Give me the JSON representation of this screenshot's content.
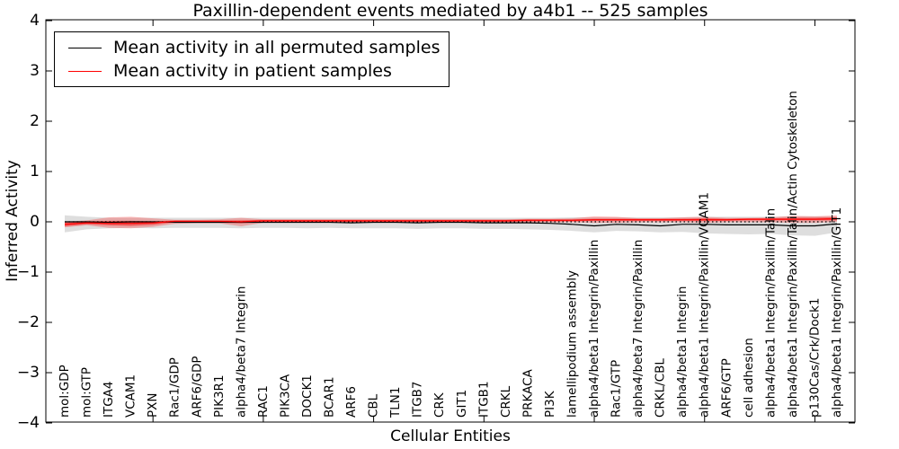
{
  "figure": {
    "title": "Paxillin-dependent events mediated by a4b1 -- 525 samples",
    "xlabel": "Cellular Entities",
    "ylabel": "Inferred Activity"
  },
  "legend": {
    "entries": [
      {
        "label": "Mean activity in all permuted samples",
        "color": "#000000"
      },
      {
        "label": "Mean activity in patient samples",
        "color": "#ff0000"
      }
    ]
  },
  "chart_data": {
    "type": "line",
    "title": "Paxillin-dependent events mediated by a4b1 -- 525 samples",
    "xlabel": "Cellular Entities",
    "ylabel": "Inferred Activity",
    "ylim": [
      -4,
      4
    ],
    "yticks": [
      4,
      3,
      2,
      1,
      0,
      -1,
      -2,
      -3,
      -4
    ],
    "ytick_labels": [
      "4",
      "3",
      "2",
      "1",
      "0",
      "−1",
      "−2",
      "−3",
      "−4"
    ],
    "grid": false,
    "legend_position": "upper left",
    "x_major_tick_indices": [
      4,
      9,
      14,
      19,
      24,
      29,
      34
    ],
    "categories": [
      "mol:GDP",
      "mol:GTP",
      "ITGA4",
      "VCAM1",
      "PXN",
      "Rac1/GDP",
      "ARF6/GDP",
      "PIK3R1",
      "alpha4/beta7 Integrin",
      "RAC1",
      "PIK3CA",
      "DOCK1",
      "BCAR1",
      "ARF6",
      "CBL",
      "TLN1",
      "ITGB7",
      "CRK",
      "GIT1",
      "ITGB1",
      "CRKL",
      "PRKACA",
      "PI3K",
      "lamellipodium assembly",
      "alpha4/beta1 Integrin/Paxillin",
      "Rac1/GTP",
      "alpha4/beta7 Integrin/Paxillin",
      "CRKL/CBL",
      "alpha4/beta1 Integrin",
      "alpha4/beta1 Integrin/Paxillin/VCAM1",
      "ARF6/GTP",
      "cell adhesion",
      "alpha4/beta1 Integrin/Paxillin/Talin",
      "alpha4/beta1 Integrin/Paxillin/Talin/Actin Cytoskeleton",
      "p130Cas/Crk/Dock1",
      "alpha4/beta1 Integrin/Paxillin/GIT1"
    ],
    "series": [
      {
        "name": "Mean activity in all permuted samples",
        "color": "#000000",
        "style": "solid",
        "values": [
          0.0,
          0.0,
          -0.01,
          0.0,
          0.0,
          -0.01,
          -0.01,
          -0.01,
          -0.01,
          -0.01,
          -0.01,
          -0.01,
          -0.01,
          -0.02,
          -0.01,
          -0.01,
          -0.02,
          -0.01,
          -0.01,
          -0.02,
          -0.02,
          -0.02,
          -0.03,
          -0.05,
          -0.08,
          -0.05,
          -0.06,
          -0.08,
          -0.05,
          -0.05,
          -0.06,
          -0.06,
          -0.06,
          -0.08,
          -0.08,
          -0.04
        ]
      },
      {
        "name": "Mean activity in patient samples",
        "color": "#ff0000",
        "style": "solid",
        "values": [
          -0.05,
          -0.02,
          -0.03,
          -0.03,
          -0.02,
          0.01,
          0.01,
          0.01,
          0.0,
          0.02,
          0.02,
          0.02,
          0.02,
          0.02,
          0.02,
          0.02,
          0.02,
          0.02,
          0.02,
          0.02,
          0.02,
          0.03,
          0.03,
          0.03,
          0.04,
          0.04,
          0.04,
          0.04,
          0.04,
          0.04,
          0.04,
          0.05,
          0.05,
          0.05,
          0.05,
          0.06
        ]
      }
    ],
    "bands": [
      {
        "name": "permuted samples spread",
        "color": "rgba(0,0,0,0.13)",
        "upper": [
          0.13,
          0.1,
          0.08,
          0.08,
          0.08,
          0.08,
          0.08,
          0.08,
          0.08,
          0.08,
          0.08,
          0.08,
          0.08,
          0.08,
          0.08,
          0.08,
          0.08,
          0.08,
          0.08,
          0.08,
          0.08,
          0.08,
          0.08,
          0.09,
          0.09,
          0.09,
          0.09,
          0.09,
          0.09,
          0.1,
          0.1,
          0.1,
          0.1,
          0.11,
          0.11,
          0.1
        ],
        "lower": [
          -0.21,
          -0.15,
          -0.13,
          -0.12,
          -0.13,
          -0.12,
          -0.12,
          -0.12,
          -0.13,
          -0.12,
          -0.12,
          -0.13,
          -0.12,
          -0.13,
          -0.13,
          -0.13,
          -0.14,
          -0.13,
          -0.13,
          -0.14,
          -0.14,
          -0.15,
          -0.16,
          -0.18,
          -0.21,
          -0.18,
          -0.19,
          -0.21,
          -0.2,
          -0.23,
          -0.24,
          -0.25,
          -0.24,
          -0.27,
          -0.28,
          -0.21
        ]
      },
      {
        "name": "patient samples spread (outer)",
        "color": "rgba(255,0,0,0.25)",
        "upper": [
          0.0,
          0.03,
          0.09,
          0.1,
          0.07,
          0.04,
          0.04,
          0.05,
          0.08,
          0.05,
          0.05,
          0.05,
          0.05,
          0.05,
          0.05,
          0.05,
          0.05,
          0.05,
          0.05,
          0.05,
          0.05,
          0.06,
          0.06,
          0.07,
          0.11,
          0.1,
          0.07,
          0.07,
          0.09,
          0.1,
          0.08,
          0.08,
          0.09,
          0.12,
          0.11,
          0.13
        ],
        "lower": [
          -0.11,
          -0.07,
          -0.12,
          -0.13,
          -0.1,
          -0.04,
          -0.03,
          -0.03,
          -0.09,
          -0.02,
          -0.02,
          -0.02,
          -0.02,
          -0.02,
          -0.02,
          -0.02,
          -0.02,
          -0.02,
          -0.02,
          -0.02,
          -0.02,
          -0.01,
          -0.01,
          -0.01,
          -0.02,
          -0.02,
          -0.01,
          -0.01,
          -0.01,
          -0.02,
          -0.01,
          -0.01,
          -0.01,
          -0.02,
          -0.02,
          0.0
        ]
      },
      {
        "name": "patient samples spread (inner)",
        "color": "rgba(255,0,0,0.45)",
        "upper": [
          -0.01,
          0.01,
          0.02,
          0.02,
          0.01,
          0.03,
          0.03,
          0.03,
          0.03,
          0.04,
          0.04,
          0.04,
          0.04,
          0.04,
          0.04,
          0.04,
          0.04,
          0.04,
          0.04,
          0.04,
          0.04,
          0.05,
          0.05,
          0.05,
          0.06,
          0.06,
          0.06,
          0.06,
          0.06,
          0.07,
          0.06,
          0.07,
          0.07,
          0.08,
          0.08,
          0.09
        ],
        "lower": [
          -0.09,
          -0.05,
          -0.07,
          -0.08,
          -0.06,
          -0.01,
          -0.01,
          -0.01,
          -0.03,
          0.0,
          0.0,
          0.0,
          0.0,
          0.0,
          0.0,
          0.0,
          0.0,
          0.0,
          0.0,
          0.0,
          0.0,
          0.01,
          0.01,
          0.01,
          0.02,
          0.02,
          0.02,
          0.02,
          0.02,
          0.02,
          0.02,
          0.03,
          0.03,
          0.03,
          0.03,
          0.03
        ]
      }
    ],
    "reference_line": {
      "y": 0,
      "style": "dotted",
      "color": "#000000"
    }
  }
}
